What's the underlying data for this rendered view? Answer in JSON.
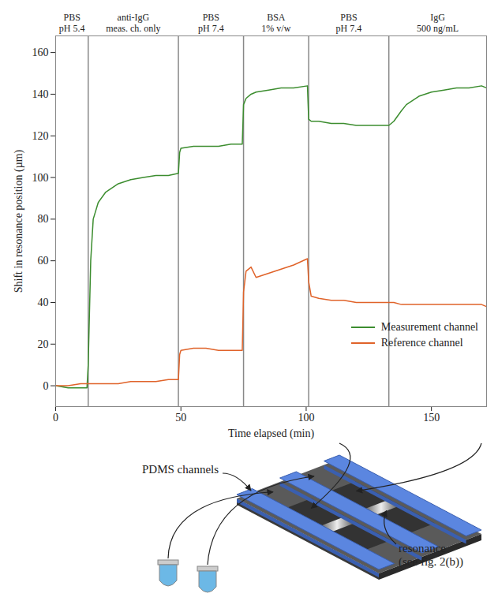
{
  "chart_data": {
    "type": "line",
    "x_label": "Time elapsed (min)",
    "y_label": "Shift in resonance position (µm)",
    "x": [
      0,
      5,
      10,
      12.5,
      13,
      14,
      15,
      17,
      20,
      25,
      30,
      35,
      40,
      45,
      49,
      49.5,
      50,
      55,
      60,
      65,
      70,
      74.5,
      75,
      76,
      78,
      80,
      85,
      90,
      95,
      100.5,
      101,
      102,
      105,
      110,
      115,
      120,
      125,
      130,
      133,
      135,
      138,
      140,
      145,
      150,
      155,
      160,
      165,
      170,
      172
    ],
    "series": [
      {
        "name": "Measurement channel",
        "color": "#3c8d2f",
        "values": [
          0,
          -1,
          -1,
          -1,
          10,
          60,
          80,
          88,
          93,
          97,
          99,
          100,
          101,
          101,
          102,
          112,
          114,
          115,
          115,
          115,
          116,
          116,
          135,
          138,
          140,
          141,
          142,
          143,
          143,
          144,
          128,
          127,
          127,
          126,
          126,
          125,
          125,
          125,
          125,
          127,
          132,
          135,
          139,
          141,
          142,
          143,
          143,
          144,
          143
        ]
      },
      {
        "name": "Reference channel",
        "color": "#e0632a",
        "values": [
          0,
          0,
          1,
          1,
          1,
          1,
          1,
          1,
          1,
          1,
          2,
          2,
          2,
          3,
          3,
          15,
          17,
          18,
          18,
          17,
          17,
          17,
          45,
          55,
          57,
          52,
          54,
          56,
          58,
          61,
          50,
          43,
          42,
          41,
          41,
          40,
          40,
          40,
          40,
          40,
          39,
          39,
          39,
          39,
          39,
          39,
          39,
          39,
          38
        ]
      }
    ],
    "xlim": [
      0,
      172
    ],
    "xticks": [
      0,
      50,
      100,
      150
    ],
    "ylim": [
      -10,
      168
    ],
    "yticks": [
      0,
      20,
      40,
      60,
      80,
      100,
      120,
      140,
      160
    ],
    "grid": false,
    "legend": "bottom-right",
    "annotations": [
      {
        "label": "PBS",
        "sublabel": "pH 5.4",
        "start": 0,
        "end": 13
      },
      {
        "label": "anti-IgG",
        "sublabel": "meas. ch. only",
        "start": 13,
        "end": 49
      },
      {
        "label": "PBS",
        "sublabel": "pH 7.4",
        "start": 49,
        "end": 75
      },
      {
        "label": "BSA",
        "sublabel": "1% v/w",
        "start": 75,
        "end": 101
      },
      {
        "label": "PBS",
        "sublabel": "pH 7.4",
        "start": 101,
        "end": 133
      },
      {
        "label": "IgG",
        "sublabel": "500 ng/mL",
        "start": 133,
        "end": 172
      }
    ]
  },
  "diagram": {
    "channels_label": "PDMS channels",
    "resonance_label": [
      "resonance",
      "(see fig. 2(b))"
    ]
  }
}
